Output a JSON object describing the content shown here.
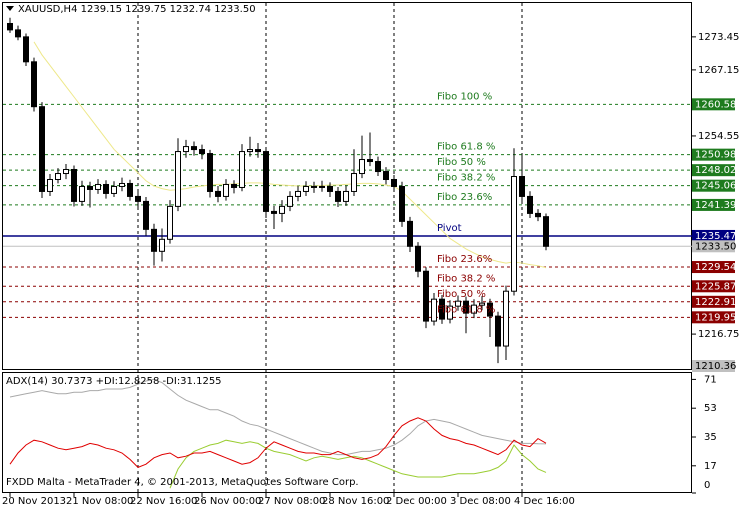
{
  "chart_data": [
    {
      "type": "candlestick",
      "title": "XAUUSD,H4  1239.15 1239.75 1232.74 1233.50",
      "ylim": [
        1209.9,
        1280.1
      ],
      "yticks": [
        1273.45,
        1267.15,
        1254.55,
        1216.75
      ],
      "open": [
        1276.0,
        1274.78,
        1273.45,
        1268.69,
        1260.13,
        1243.96,
        1246.24,
        1247.38,
        1248.15,
        1242.06,
        1244.91,
        1244.34,
        1245.29,
        1243.58,
        1244.91,
        1245.48,
        1243.01,
        1242.06,
        1236.73,
        1232.54,
        1234.83,
        1241.11,
        1251.57,
        1252.52,
        1251.95,
        1251.19,
        1243.96,
        1243.01,
        1245.29,
        1244.72,
        1251.57,
        1251.95,
        1251.57,
        1240.15,
        1239.77,
        1241.11,
        1243.01,
        1243.96,
        1244.91,
        1244.72,
        1244.91,
        1243.96,
        1242.06,
        1243.96,
        1247.38,
        1250.05,
        1249.67,
        1247.76,
        1246.24,
        1244.91,
        1238.25,
        1233.5,
        1228.74,
        1219.23,
        1223.41,
        1219.61,
        1222.08,
        1223.03,
        1220.75,
        1222.27,
        1222.65,
        1220.18,
        1214.47,
        1224.93,
        1246.81,
        1243.01,
        1239.77,
        1239.15
      ],
      "high": [
        1277.1,
        1275.6,
        1274.1,
        1269.5,
        1261.0,
        1247.3,
        1248.4,
        1249.2,
        1248.9,
        1246.0,
        1245.8,
        1246.3,
        1246.1,
        1245.9,
        1246.6,
        1246.2,
        1244.1,
        1242.9,
        1237.8,
        1236.9,
        1242.3,
        1254.1,
        1253.8,
        1253.5,
        1252.9,
        1251.9,
        1245.0,
        1246.3,
        1246.1,
        1253.0,
        1254.4,
        1253.2,
        1252.3,
        1241.2,
        1242.3,
        1244.0,
        1245.0,
        1245.9,
        1245.8,
        1246.0,
        1245.7,
        1244.8,
        1245.1,
        1252.0,
        1254.6,
        1255.2,
        1250.6,
        1248.6,
        1247.1,
        1245.8,
        1239.1,
        1234.3,
        1229.5,
        1224.6,
        1224.2,
        1223.2,
        1224.1,
        1223.9,
        1223.4,
        1224.0,
        1223.5,
        1221.0,
        1226.0,
        1252.2,
        1251.0,
        1244.0,
        1240.6,
        1239.75
      ],
      "low": [
        1274.2,
        1272.8,
        1267.9,
        1259.2,
        1242.7,
        1243.1,
        1245.5,
        1246.3,
        1241.1,
        1241.2,
        1240.9,
        1243.5,
        1242.6,
        1242.9,
        1244.0,
        1242.2,
        1240.8,
        1235.5,
        1229.8,
        1230.6,
        1234.0,
        1240.2,
        1250.4,
        1250.8,
        1250.1,
        1242.8,
        1241.9,
        1242.2,
        1243.6,
        1244.0,
        1250.6,
        1250.4,
        1238.9,
        1236.8,
        1238.1,
        1240.2,
        1242.1,
        1243.1,
        1243.7,
        1243.9,
        1242.9,
        1241.0,
        1241.2,
        1243.1,
        1246.5,
        1248.8,
        1246.9,
        1245.3,
        1243.9,
        1237.2,
        1232.4,
        1227.6,
        1217.9,
        1218.4,
        1218.7,
        1218.8,
        1221.2,
        1216.9,
        1219.8,
        1221.3,
        1216.2,
        1211.2,
        1211.8,
        1224.1,
        1242.1,
        1238.9,
        1238.3,
        1232.74
      ],
      "close": [
        1274.78,
        1273.45,
        1268.69,
        1260.13,
        1243.96,
        1246.24,
        1247.38,
        1248.15,
        1242.06,
        1244.91,
        1244.34,
        1245.29,
        1243.58,
        1244.91,
        1245.48,
        1243.01,
        1242.06,
        1236.73,
        1232.54,
        1234.83,
        1241.11,
        1251.57,
        1252.52,
        1251.95,
        1251.19,
        1243.96,
        1243.01,
        1245.29,
        1244.72,
        1251.57,
        1251.95,
        1251.57,
        1240.15,
        1239.77,
        1241.11,
        1243.01,
        1243.96,
        1244.91,
        1244.72,
        1244.91,
        1243.96,
        1242.06,
        1243.96,
        1247.38,
        1250.05,
        1249.67,
        1247.76,
        1246.24,
        1244.91,
        1238.25,
        1233.5,
        1228.74,
        1219.23,
        1223.41,
        1219.61,
        1222.08,
        1223.03,
        1220.75,
        1222.27,
        1222.65,
        1220.18,
        1214.47,
        1224.93,
        1246.81,
        1243.01,
        1239.77,
        1239.15,
        1233.5
      ],
      "series": [
        {
          "color": "#eee88a",
          "values": [
            null,
            null,
            null,
            1272.5,
            1270,
            1268,
            1266,
            1264,
            1262,
            1260,
            1258,
            1256,
            1254,
            1252,
            1250.5,
            1249,
            1247.5,
            1246,
            1245,
            1244.5,
            1244.2,
            1244.3,
            1244.5,
            1244.8,
            1245,
            1245.2,
            1245.3,
            1245.3,
            1245.4,
            1245.5,
            1245.6,
            1245.6,
            1245.5,
            1245.3,
            1245.2,
            1245.1,
            1245,
            1245,
            1245,
            1245.1,
            1245.2,
            1245.2,
            1245.3,
            1245.4,
            1245.5,
            1245.5,
            1245.4,
            1245.2,
            1244.9,
            1244,
            1242.5,
            1241,
            1239.5,
            1238,
            1236.5,
            1235,
            1234,
            1233,
            1232.2,
            1231.5,
            1231,
            1230.6,
            1230.3,
            1230.5,
            1230.3,
            1230,
            1229.8,
            1229.4
          ]
        }
      ],
      "levels": [
        {
          "price": 1260.58,
          "text": "Fibo 100 %",
          "color": "#1e7b1e",
          "style": "dash"
        },
        {
          "price": 1250.98,
          "text": "Fibo 61.8 %",
          "color": "#1e7b1e",
          "style": "dash"
        },
        {
          "price": 1248.02,
          "text": "Fibo 50 %",
          "color": "#1e7b1e",
          "style": "dash"
        },
        {
          "price": 1245.06,
          "text": "Fibo 38.2 %",
          "color": "#1e7b1e",
          "style": "dash"
        },
        {
          "price": 1241.39,
          "text": "Fibo 23.6%",
          "color": "#1e7b1e",
          "style": "dash"
        },
        {
          "price": 1235.47,
          "text": "Pivot",
          "color": "#000080",
          "style": "solid"
        },
        {
          "price": {
            "value": 1233.5,
            "label": "1233.50"
          },
          "color": "#c0c0c0",
          "style": "solid"
        },
        {
          "price": 1229.54,
          "text": "Fibo 23.6%",
          "color": "#8b0000",
          "style": "dash"
        },
        {
          "price": 1225.87,
          "text": "Fibo 38.2 %",
          "color": "#8b0000",
          "style": "dash"
        },
        {
          "price": 1222.91,
          "text": "Fibo 50 %",
          "color": "#8b0000",
          "style": "dash"
        },
        {
          "price": 1219.95,
          "text": "Fibo 61.8 %",
          "color": "#8b0000",
          "style": "dash"
        },
        {
          "price": 1210.36,
          "color": "#c0c0c0",
          "style": "none"
        }
      ]
    },
    {
      "type": "line",
      "title": "ADX(14) 30.7373 +DI:12.8258 -DI:31.1255",
      "ylim": [
        0,
        75
      ],
      "yticks": [
        71,
        53,
        35,
        17,
        0
      ],
      "categories": [
        "20 Nov 2013",
        null,
        null,
        null,
        null,
        null,
        null,
        null,
        "21 Nov 08:00",
        null,
        null,
        null,
        null,
        null,
        null,
        null,
        "22 Nov 16:00",
        null,
        null,
        null,
        null,
        null,
        null,
        null,
        "26 Nov 00:00",
        null,
        null,
        null,
        null,
        null,
        null,
        null,
        "27 Nov 08:00",
        null,
        null,
        null,
        null,
        null,
        null,
        null,
        "28 Nov 16:00",
        null,
        null,
        null,
        null,
        null,
        null,
        null,
        "2 Dec 00:00",
        null,
        null,
        null,
        null,
        null,
        null,
        null,
        "3 Dec 08:00",
        null,
        null,
        null,
        null,
        null,
        null,
        null,
        "4 Dec 16:00",
        null,
        null,
        null
      ],
      "series": [
        {
          "color": "#a9a9a9",
          "values": [
            60,
            61,
            62,
            63,
            64,
            63,
            62,
            62,
            63,
            63,
            64,
            64,
            65,
            65,
            65,
            66,
            68,
            70,
            71,
            69,
            65,
            61,
            58,
            56,
            54,
            52,
            52,
            50,
            48,
            45,
            43,
            42,
            40,
            38,
            36,
            34,
            32,
            30,
            28,
            26,
            25,
            24,
            24,
            25,
            26,
            26,
            27,
            28,
            30,
            33,
            37,
            42,
            45,
            46,
            45,
            44,
            42,
            40,
            38,
            36,
            35,
            34,
            33,
            32,
            31,
            31,
            30.8,
            30.7373
          ]
        },
        {
          "color": "#9acd32",
          "values": [
            null,
            null,
            null,
            null,
            null,
            null,
            null,
            null,
            null,
            null,
            null,
            null,
            null,
            null,
            null,
            null,
            null,
            null,
            null,
            null,
            3,
            15,
            22,
            26,
            28,
            30,
            31,
            33,
            32,
            31,
            32,
            31,
            28,
            26,
            25,
            24,
            22,
            20,
            22,
            23,
            22,
            21,
            22,
            23,
            22,
            20,
            18,
            16,
            14,
            12,
            11,
            10,
            10,
            10,
            10,
            11,
            12,
            12,
            12,
            13,
            14,
            16,
            20,
            30,
            24,
            20,
            15,
            12.8258
          ]
        },
        {
          "color": "#e00000",
          "values": [
            18,
            25,
            30,
            33,
            32,
            30,
            28,
            27,
            28,
            29,
            31,
            30,
            28,
            27,
            25,
            21,
            16,
            18,
            22,
            24,
            25,
            22,
            23,
            25,
            25,
            26,
            24,
            22,
            20,
            18,
            19,
            22,
            28,
            32,
            30,
            28,
            26,
            25,
            25,
            24,
            24,
            26,
            24,
            22,
            21,
            22,
            24,
            29,
            36,
            42,
            45,
            47,
            45,
            40,
            36,
            34,
            33,
            31,
            30,
            28,
            26,
            24,
            27,
            33,
            30,
            29,
            34,
            31.1255
          ]
        }
      ]
    }
  ],
  "footer": "FXDD Malta - MetaTrader 4, © 2001-2013, MetaQuotes Software Corp."
}
